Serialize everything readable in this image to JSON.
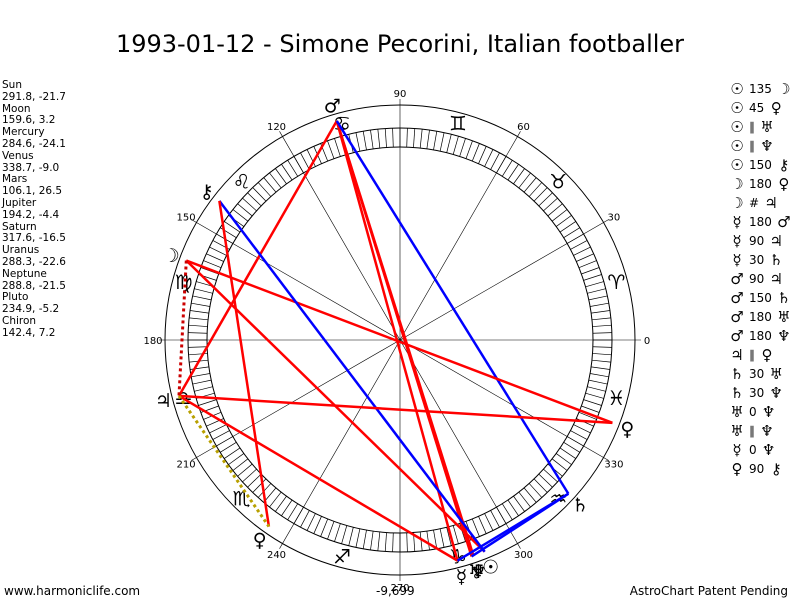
{
  "title": "1993-01-12 - Simone Pecorini, Italian footballer",
  "positions": [
    {
      "name": "Sun",
      "coords": "291.8, -21.7"
    },
    {
      "name": "Moon",
      "coords": "159.6, 3.2"
    },
    {
      "name": "Mercury",
      "coords": "284.6, -24.1"
    },
    {
      "name": "Venus",
      "coords": "338.7, -9.0"
    },
    {
      "name": "Mars",
      "coords": "106.1, 26.5"
    },
    {
      "name": "Jupiter",
      "coords": "194.2, -4.4"
    },
    {
      "name": "Saturn",
      "coords": "317.6, -16.5"
    },
    {
      "name": "Uranus",
      "coords": "288.3, -22.6"
    },
    {
      "name": "Neptune",
      "coords": "288.8, -21.5"
    },
    {
      "name": "Pluto",
      "coords": "234.9, -5.2"
    },
    {
      "name": "Chiron",
      "coords": "142.4, 7.2"
    }
  ],
  "aspects": [
    {
      "p1": "☉",
      "value": "135",
      "p2": "☽"
    },
    {
      "p1": "☉",
      "value": "45",
      "p2": "♀"
    },
    {
      "p1": "☉",
      "value": "∥",
      "p2": "♅"
    },
    {
      "p1": "☉",
      "value": "∥",
      "p2": "♆"
    },
    {
      "p1": "☉",
      "value": "150",
      "p2": "⚷"
    },
    {
      "p1": "☽",
      "value": "180",
      "p2": "♀"
    },
    {
      "p1": "☽",
      "value": "#",
      "p2": "♃"
    },
    {
      "p1": "☿",
      "value": "180",
      "p2": "♂"
    },
    {
      "p1": "☿",
      "value": "90",
      "p2": "♃"
    },
    {
      "p1": "☿",
      "value": "30",
      "p2": "♄"
    },
    {
      "p1": "♂",
      "value": "90",
      "p2": "♃"
    },
    {
      "p1": "♂",
      "value": "150",
      "p2": "♄"
    },
    {
      "p1": "♂",
      "value": "180",
      "p2": "♅"
    },
    {
      "p1": "♂",
      "value": "180",
      "p2": "♆"
    },
    {
      "p1": "♃",
      "value": "∥",
      "p2": "♀"
    },
    {
      "p1": "♄",
      "value": "30",
      "p2": "♅"
    },
    {
      "p1": "♄",
      "value": "30",
      "p2": "♆"
    },
    {
      "p1": "♅",
      "value": "0",
      "p2": "♆"
    },
    {
      "p1": "♅",
      "value": "∥",
      "p2": "♆"
    },
    {
      "p1": "☿",
      "value": "0",
      "p2": "♆"
    },
    {
      "p1": "♀",
      "value": "90",
      "p2": "⚷"
    }
  ],
  "wheel": {
    "degree_labels": [
      "0",
      "30",
      "60",
      "90",
      "120",
      "150",
      "180",
      "210",
      "240",
      "270",
      "300",
      "330"
    ],
    "zodiac_signs": [
      {
        "name": "aries",
        "glyph": "♈",
        "lon": 15
      },
      {
        "name": "taurus",
        "glyph": "♉",
        "lon": 45
      },
      {
        "name": "gemini",
        "glyph": "♊",
        "lon": 75
      },
      {
        "name": "cancer",
        "glyph": "♋",
        "lon": 105
      },
      {
        "name": "leo",
        "glyph": "♌",
        "lon": 135
      },
      {
        "name": "virgo",
        "glyph": "♍",
        "lon": 165
      },
      {
        "name": "libra",
        "glyph": "♎",
        "lon": 195
      },
      {
        "name": "scorpio",
        "glyph": "♏",
        "lon": 225
      },
      {
        "name": "sagittarius",
        "glyph": "♐",
        "lon": 255
      },
      {
        "name": "capricorn",
        "glyph": "♑",
        "lon": 285
      },
      {
        "name": "aquarius",
        "glyph": "♒",
        "lon": 315
      },
      {
        "name": "pisces",
        "glyph": "♓",
        "lon": 345
      }
    ],
    "planets": [
      {
        "name": "sun",
        "glyph": "☉",
        "lon": 291.8
      },
      {
        "name": "moon",
        "glyph": "☽",
        "lon": 159.6
      },
      {
        "name": "mercury",
        "glyph": "☿",
        "lon": 284.6
      },
      {
        "name": "venus",
        "glyph": "♀",
        "lon": 338.7
      },
      {
        "name": "mars",
        "glyph": "♂",
        "lon": 106.1
      },
      {
        "name": "jupiter",
        "glyph": "♃",
        "lon": 194.2
      },
      {
        "name": "saturn",
        "glyph": "♄",
        "lon": 317.6
      },
      {
        "name": "uranus",
        "glyph": "♅",
        "lon": 288.3
      },
      {
        "name": "neptune",
        "glyph": "♆",
        "lon": 288.8
      },
      {
        "name": "pluto",
        "glyph": "♀",
        "lon": 234.9
      },
      {
        "name": "chiron",
        "glyph": "⚷",
        "lon": 142.4
      }
    ],
    "aspect_lines": [
      {
        "from": "mars",
        "to": "mercury",
        "color": "#ff0000",
        "style": "solid"
      },
      {
        "from": "mars",
        "to": "uranus",
        "color": "#ff0000",
        "style": "solid"
      },
      {
        "from": "mars",
        "to": "neptune",
        "color": "#ff0000",
        "style": "solid"
      },
      {
        "from": "mars",
        "to": "jupiter",
        "color": "#ff0000",
        "style": "solid"
      },
      {
        "from": "mars",
        "to": "saturn",
        "color": "#0000ff",
        "style": "solid"
      },
      {
        "from": "moon",
        "to": "venus",
        "color": "#ff0000",
        "style": "solid"
      },
      {
        "from": "sun",
        "to": "moon",
        "color": "#ff0000",
        "style": "solid"
      },
      {
        "from": "sun",
        "to": "chiron",
        "color": "#0000ff",
        "style": "solid"
      },
      {
        "from": "mercury",
        "to": "jupiter",
        "color": "#ff0000",
        "style": "solid"
      },
      {
        "from": "mercury",
        "to": "saturn",
        "color": "#0000ff",
        "style": "solid"
      },
      {
        "from": "saturn",
        "to": "uranus",
        "color": "#0000ff",
        "style": "solid"
      },
      {
        "from": "jupiter",
        "to": "venus",
        "color": "#ff0000",
        "style": "solid"
      },
      {
        "from": "chiron",
        "to": "pluto",
        "color": "#ff0000",
        "style": "solid"
      },
      {
        "from": "moon",
        "to": "jupiter",
        "color": "#cc0000",
        "style": "dotted"
      },
      {
        "from": "jupiter",
        "to": "pluto",
        "color": "#b8a000",
        "style": "dotted"
      }
    ]
  },
  "footer": {
    "left": "www.harmoniclife.com",
    "center": "-9,699",
    "right": "AstroChart Patent Pending"
  }
}
